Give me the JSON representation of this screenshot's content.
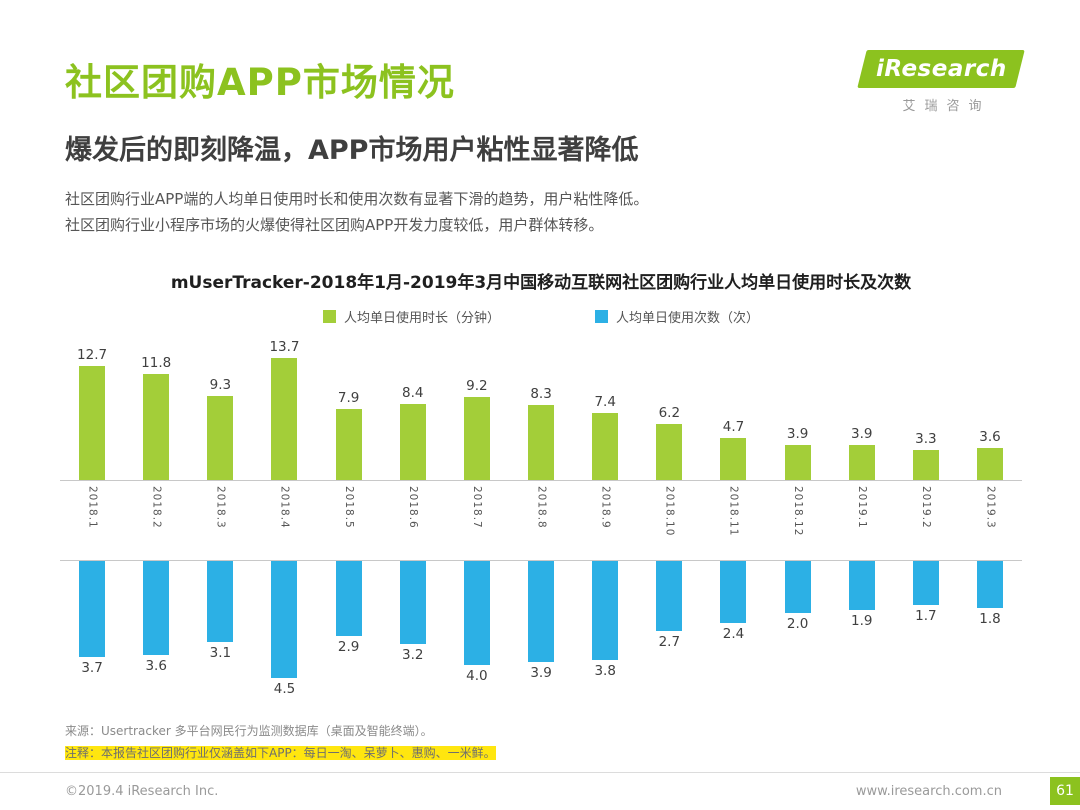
{
  "colors": {
    "accent_green": "#8cc21f",
    "bar_green": "#a3ce39",
    "bar_blue": "#2cb0e5",
    "highlight_yellow": "#ffe60f",
    "axis_line": "#c8c8c8"
  },
  "logo": {
    "text": "iResearch",
    "subtext": "艾瑞咨询"
  },
  "header": {
    "title": "社区团购APP市场情况",
    "subtitle": "爆发后的即刻降温，APP市场用户粘性显著降低",
    "body_lines": [
      "社区团购行业APP端的人均单日使用时长和使用次数有显著下滑的趋势，用户粘性降低。",
      "社区团购行业小程序市场的火爆使得社区团购APP开发力度较低，用户群体转移。"
    ]
  },
  "chart_data": {
    "type": "bar",
    "title": "mUserTracker-2018年1月-2019年3月中国移动互联网社区团购行业人均单日使用时长及次数",
    "categories": [
      "2018.1",
      "2018.2",
      "2018.3",
      "2018.4",
      "2018.5",
      "2018.6",
      "2018.7",
      "2018.8",
      "2018.9",
      "2018.10",
      "2018.11",
      "2018.12",
      "2019.1",
      "2019.2",
      "2019.3"
    ],
    "series": [
      {
        "name": "人均单日使用时长（分钟）",
        "unit": "分钟",
        "color": "#a3ce39",
        "direction": "up",
        "values": [
          12.7,
          11.8,
          9.3,
          13.7,
          7.9,
          8.4,
          9.2,
          8.3,
          7.4,
          6.2,
          4.7,
          3.9,
          3.9,
          3.3,
          3.6
        ]
      },
      {
        "name": "人均单日使用次数（次）",
        "unit": "次",
        "color": "#2cb0e5",
        "direction": "down",
        "values": [
          3.7,
          3.6,
          3.1,
          4.5,
          2.9,
          3.2,
          4.0,
          3.9,
          3.8,
          2.7,
          2.4,
          2.0,
          1.9,
          1.7,
          1.8
        ]
      }
    ],
    "legend_position": "top",
    "grid": false
  },
  "footer": {
    "source": "来源：Usertracker 多平台网民行为监测数据库（桌面及智能终端）。",
    "note": "注释：本报告社区团购行业仅涵盖如下APP：每日一淘、呆萝卜、惠购、一米鲜。",
    "copyright": "©2019.4 iResearch Inc.",
    "website": "www.iresearch.com.cn",
    "page_number": "61"
  }
}
